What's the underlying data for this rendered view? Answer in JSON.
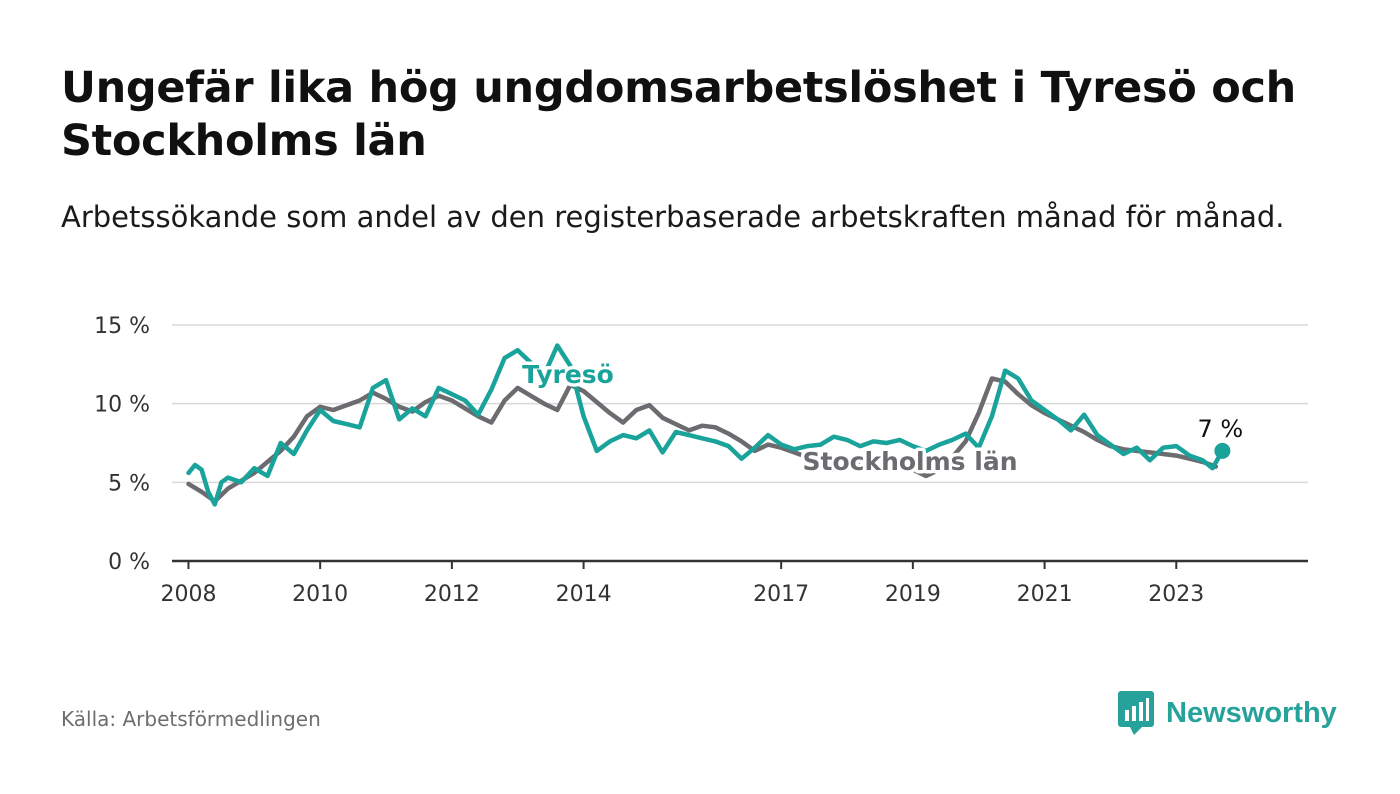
{
  "title": "Ungefär lika hög ungdomsarbetslöshet i Tyresö och Stockholms län",
  "subtitle": "Arbetssökande som andel av den registerbaserade arbetskraften månad för månad.",
  "source": "Källa: Arbetsförmedlingen",
  "brand": "Newsworthy",
  "brand_icon": "newsworthy-logo-icon",
  "colors": {
    "tyreso": "#1aa39a",
    "stockholm": "#6b6b70",
    "grid": "#d9d9d9",
    "axis": "#333333"
  },
  "chart_data": {
    "type": "line",
    "title": "Ungefär lika hög ungdomsarbetslöshet i Tyresö och Stockholms län",
    "xlabel": "",
    "ylabel": "",
    "ylim": [
      0,
      15
    ],
    "xlim": [
      2007.75,
      2025.0
    ],
    "yticks": [
      0,
      5,
      10,
      15
    ],
    "ytick_labels": [
      "0 %",
      "5 %",
      "10 %",
      "15 %"
    ],
    "xticks": [
      2008,
      2010,
      2012,
      2014,
      2017,
      2019,
      2021,
      2023
    ],
    "xtick_labels": [
      "2008",
      "2010",
      "2012",
      "2014",
      "2017",
      "2019",
      "2021",
      "2023"
    ],
    "grid": true,
    "series": [
      {
        "name": "Stockholms län",
        "label": "Stockholms län",
        "x": [
          2008.0,
          2008.2,
          2008.4,
          2008.6,
          2008.8,
          2009.0,
          2009.2,
          2009.4,
          2009.6,
          2009.8,
          2010.0,
          2010.2,
          2010.4,
          2010.6,
          2010.8,
          2011.0,
          2011.2,
          2011.4,
          2011.6,
          2011.8,
          2012.0,
          2012.2,
          2012.4,
          2012.6,
          2012.8,
          2013.0,
          2013.2,
          2013.4,
          2013.6,
          2013.8,
          2014.0,
          2014.2,
          2014.4,
          2014.6,
          2014.8,
          2015.0,
          2015.2,
          2015.4,
          2015.6,
          2015.8,
          2016.0,
          2016.2,
          2016.4,
          2016.6,
          2016.8,
          2017.0,
          2017.2,
          2017.4,
          2017.6,
          2017.8,
          2018.0,
          2018.2,
          2018.4,
          2018.6,
          2018.8,
          2019.0,
          2019.2,
          2019.4,
          2019.6,
          2019.8,
          2020.0,
          2020.2,
          2020.4,
          2020.6,
          2020.8,
          2021.0,
          2021.2,
          2021.4,
          2021.6,
          2021.8,
          2022.0,
          2022.2,
          2022.4,
          2022.6,
          2022.8,
          2023.0,
          2023.2,
          2023.4,
          2023.6
        ],
        "values": [
          4.9,
          4.4,
          3.8,
          4.6,
          5.1,
          5.6,
          6.3,
          7.0,
          7.9,
          9.2,
          9.8,
          9.6,
          9.9,
          10.2,
          10.7,
          10.3,
          9.8,
          9.5,
          10.1,
          10.5,
          10.2,
          9.7,
          9.2,
          8.8,
          10.2,
          11.0,
          10.5,
          10.0,
          9.6,
          11.2,
          10.8,
          10.1,
          9.4,
          8.8,
          9.6,
          9.9,
          9.1,
          8.7,
          8.3,
          8.6,
          8.5,
          8.1,
          7.6,
          7.0,
          7.4,
          7.2,
          6.9,
          6.6,
          6.4,
          6.6,
          6.4,
          6.2,
          6.0,
          6.1,
          6.2,
          5.8,
          5.4,
          5.8,
          6.6,
          7.6,
          9.4,
          11.6,
          11.4,
          10.6,
          9.9,
          9.4,
          9.0,
          8.6,
          8.2,
          7.7,
          7.3,
          7.1,
          7.0,
          6.9,
          6.8,
          6.7,
          6.5,
          6.3,
          6.0
        ],
        "end_label": ""
      },
      {
        "name": "Tyresö",
        "label": "Tyresö",
        "x": [
          2008.0,
          2008.1,
          2008.2,
          2008.3,
          2008.4,
          2008.5,
          2008.6,
          2008.8,
          2009.0,
          2009.2,
          2009.4,
          2009.6,
          2009.8,
          2010.0,
          2010.2,
          2010.4,
          2010.6,
          2010.8,
          2011.0,
          2011.2,
          2011.4,
          2011.6,
          2011.8,
          2012.0,
          2012.2,
          2012.4,
          2012.6,
          2012.8,
          2013.0,
          2013.2,
          2013.4,
          2013.6,
          2013.8,
          2014.0,
          2014.2,
          2014.4,
          2014.6,
          2014.8,
          2015.0,
          2015.2,
          2015.4,
          2015.6,
          2015.8,
          2016.0,
          2016.2,
          2016.4,
          2016.6,
          2016.8,
          2017.0,
          2017.2,
          2017.4,
          2017.6,
          2017.8,
          2018.0,
          2018.2,
          2018.4,
          2018.6,
          2018.8,
          2019.0,
          2019.2,
          2019.4,
          2019.6,
          2019.8,
          2020.0,
          2020.2,
          2020.4,
          2020.6,
          2020.8,
          2021.0,
          2021.2,
          2021.4,
          2021.6,
          2021.8,
          2022.0,
          2022.2,
          2022.4,
          2022.6,
          2022.8,
          2023.0,
          2023.2,
          2023.4,
          2023.55,
          2023.7
        ],
        "values": [
          5.6,
          6.1,
          5.8,
          4.4,
          3.6,
          5.0,
          5.3,
          5.0,
          5.9,
          5.4,
          7.5,
          6.8,
          8.3,
          9.6,
          8.9,
          8.7,
          8.5,
          11.0,
          11.5,
          9.0,
          9.7,
          9.2,
          11.0,
          10.6,
          10.2,
          9.3,
          10.9,
          12.9,
          13.4,
          12.6,
          11.8,
          13.7,
          12.4,
          9.2,
          7.0,
          7.6,
          8.0,
          7.8,
          8.3,
          6.9,
          8.2,
          8.0,
          7.8,
          7.6,
          7.3,
          6.5,
          7.2,
          8.0,
          7.4,
          7.1,
          7.3,
          7.4,
          7.9,
          7.7,
          7.3,
          7.6,
          7.5,
          7.7,
          7.3,
          7.0,
          7.4,
          7.7,
          8.1,
          7.2,
          9.2,
          12.1,
          11.6,
          10.2,
          9.6,
          9.0,
          8.3,
          9.3,
          8.0,
          7.4,
          6.8,
          7.2,
          6.4,
          7.2,
          7.3,
          6.7,
          6.4,
          5.9,
          7.0
        ],
        "end_label": "7 %"
      }
    ]
  }
}
